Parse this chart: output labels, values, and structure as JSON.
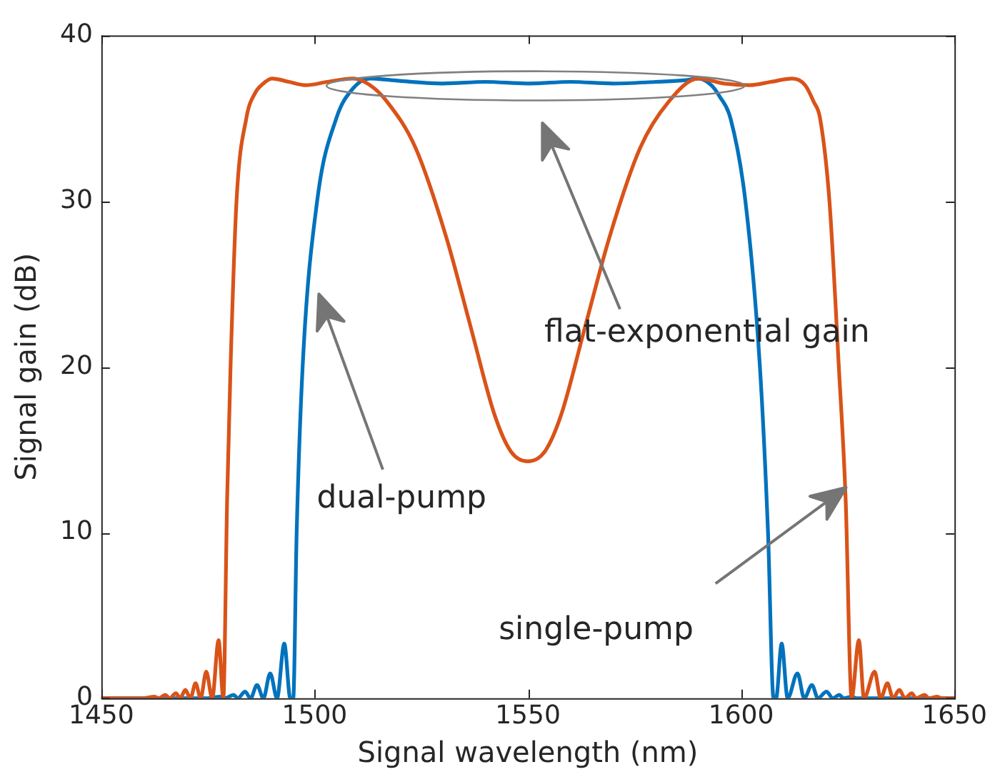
{
  "chart_data": {
    "type": "line",
    "xlabel": "Signal wavelength (nm)",
    "ylabel": "Signal gain (dB)",
    "xlim": [
      1450,
      1650
    ],
    "xticks": [
      1450,
      1500,
      1550,
      1600,
      1650
    ],
    "ylim": [
      0,
      40
    ],
    "yticks": [
      0,
      10,
      20,
      30,
      40
    ],
    "grid": false,
    "legend": false,
    "marker": "none",
    "line_style": "solid",
    "annotations": [
      "dual-pump",
      "flat-exponential gain",
      "single-pump"
    ],
    "series": [
      {
        "color": "#d95319",
        "x": [
          1450,
          1460,
          1462.5,
          1463.5,
          1465,
          1466,
          1467.5,
          1468.5,
          1469.7,
          1470.9,
          1472.1,
          1473.3,
          1474.6,
          1476,
          1477.5,
          1478.6,
          1479.5,
          1480.3,
          1481.7,
          1484,
          1486,
          1488,
          1490,
          1494,
          1498,
          1503,
          1509,
          1513,
          1517,
          1523.7,
          1530.9,
          1536.6,
          1542.2,
          1546,
          1550,
          1554,
          1557.8,
          1563.4,
          1569.1,
          1576.3,
          1583,
          1590,
          1596,
          1602,
          1607,
          1612,
          1615,
          1617,
          1618.5,
          1620.7,
          1622.9,
          1624.5,
          1625.9,
          1627.6,
          1628.8,
          1631.3,
          1632.7,
          1634.3,
          1635.6,
          1637.1,
          1638.4,
          1640,
          1641,
          1643,
          1644,
          1646,
          1647,
          1650
        ],
        "values": [
          0,
          0,
          0.1,
          0,
          0.2,
          0,
          0.3,
          0,
          0.5,
          0,
          0.9,
          0,
          1.6,
          0,
          3.5,
          0,
          12,
          20,
          30,
          35,
          36.5,
          37.1,
          37.4,
          37.2,
          37,
          37.2,
          37.4,
          37,
          36,
          33.2,
          27.8,
          22.4,
          17.1,
          14.9,
          14.3,
          14.9,
          17.1,
          22.4,
          27.8,
          33.2,
          36,
          37.4,
          37.1,
          37,
          37.2,
          37.4,
          37,
          36,
          35,
          30,
          20,
          12,
          0,
          3.5,
          0,
          1.6,
          0,
          0.9,
          0,
          0.5,
          0,
          0.3,
          0,
          0.2,
          0,
          0.1,
          0,
          0
        ]
      },
      {
        "color": "#0072bd",
        "x": [
          1450,
          1470,
          1475,
          1478,
          1479,
          1481,
          1482,
          1483.7,
          1485,
          1486.5,
          1488,
          1489.6,
          1491.2,
          1492.9,
          1494.3,
          1495,
          1495.8,
          1497.2,
          1500.6,
          1505.1,
          1509,
          1513,
          1518,
          1530,
          1540,
          1550,
          1560,
          1570,
          1580,
          1587,
          1590,
          1593,
          1595,
          1597.5,
          1601,
          1604.4,
          1606.3,
          1607.6,
          1608.2,
          1609.5,
          1610.9,
          1613.2,
          1614.8,
          1616.6,
          1618,
          1620,
          1621.5,
          1623,
          1624,
          1626,
          1627,
          1632,
          1650
        ],
        "values": [
          0,
          0,
          0,
          0.1,
          0,
          0.2,
          0,
          0.4,
          0,
          0.8,
          0,
          1.5,
          0,
          3.3,
          0,
          0,
          10,
          20,
          30,
          35,
          36.8,
          37.4,
          37.3,
          37.1,
          37.2,
          37.1,
          37.2,
          37.1,
          37.2,
          37.3,
          37.4,
          37,
          36.3,
          35,
          30,
          20,
          10,
          0,
          0,
          3.3,
          0,
          1.5,
          0,
          0.8,
          0,
          0.4,
          0,
          0.2,
          0,
          0.1,
          0,
          0,
          0
        ]
      }
    ]
  }
}
